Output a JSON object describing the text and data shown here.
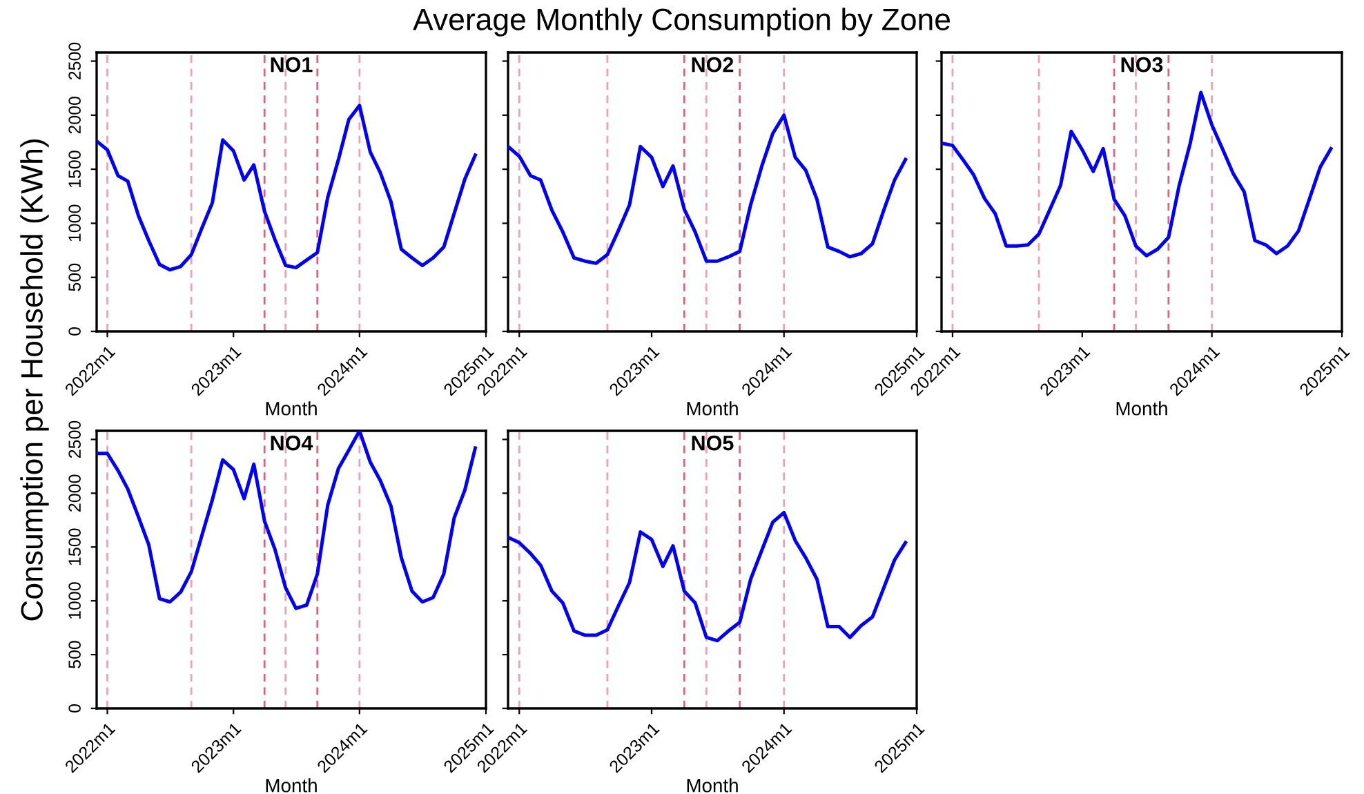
{
  "chart_data": [
    {
      "type": "line",
      "title": "NO1",
      "xlabel": "Month",
      "ylabel": "Consumption per Household (KWh)",
      "annotations": [
        "Average Monthly Consumption by Zone"
      ],
      "xlim": [
        "2021-12",
        "2025-01"
      ],
      "xticks": [
        {
          "value": "2022-01",
          "label": "2022m1"
        },
        {
          "value": "2023-01",
          "label": "2023m1"
        },
        {
          "value": "2024-01",
          "label": "2024m1"
        },
        {
          "value": "2025-01",
          "label": "2025m1"
        }
      ],
      "ylim": [
        0,
        2580
      ],
      "yticks": [
        0,
        500,
        1000,
        1500,
        2000,
        2500
      ],
      "grid": false,
      "legend": false,
      "line_style": "solid",
      "x": [
        "2021-12",
        "2022-01",
        "2022-02",
        "2022-03",
        "2022-04",
        "2022-05",
        "2022-06",
        "2022-07",
        "2022-08",
        "2022-09",
        "2022-10",
        "2022-11",
        "2022-12",
        "2023-01",
        "2023-02",
        "2023-03",
        "2023-04",
        "2023-05",
        "2023-06",
        "2023-07",
        "2023-08",
        "2023-09",
        "2023-10",
        "2023-11",
        "2023-12",
        "2024-01",
        "2024-02",
        "2024-03",
        "2024-04",
        "2024-05",
        "2024-06",
        "2024-07",
        "2024-08",
        "2024-09",
        "2024-10",
        "2024-11",
        "2024-12"
      ],
      "series": [
        {
          "color": "#0000ff",
          "values": [
            1760,
            1680,
            1440,
            1390,
            1070,
            840,
            620,
            570,
            600,
            710,
            950,
            1190,
            1770,
            1670,
            1400,
            1540,
            1110,
            850,
            610,
            590,
            660,
            730,
            1240,
            1590,
            1960,
            2090,
            1660,
            1470,
            1200,
            760,
            680,
            610,
            680,
            780,
            1090,
            1410,
            1630
          ]
        }
      ],
      "ref_lines": [
        {
          "axis": "x",
          "value": "2022-01",
          "color": "#f0a0b4",
          "line_style": "dashed"
        },
        {
          "axis": "x",
          "value": "2022-09",
          "color": "#f0a0b4",
          "line_style": "dashed"
        },
        {
          "axis": "x",
          "value": "2023-04",
          "color": "#e0607e",
          "line_style": "dashed"
        },
        {
          "axis": "x",
          "value": "2023-06",
          "color": "#f0a0b4",
          "line_style": "dashed"
        },
        {
          "axis": "x",
          "value": "2023-09",
          "color": "#e0607e",
          "line_style": "dashed"
        },
        {
          "axis": "x",
          "value": "2024-01",
          "color": "#f0a0b4",
          "line_style": "dashed"
        }
      ]
    },
    {
      "type": "line",
      "title": "NO2",
      "xlabel": "Month",
      "tick_labels": "x",
      "xlim": [
        "2021-12",
        "2025-01"
      ],
      "xticks": [
        {
          "value": "2022-01",
          "label": "2022m1"
        },
        {
          "value": "2023-01",
          "label": "2023m1"
        },
        {
          "value": "2024-01",
          "label": "2024m1"
        },
        {
          "value": "2025-01",
          "label": "2025m1"
        }
      ],
      "ylim": [
        0,
        2580
      ],
      "yticks": [
        0,
        500,
        1000,
        1500,
        2000,
        2500
      ],
      "grid": false,
      "legend": false,
      "line_style": "solid",
      "x": [
        "2021-12",
        "2022-01",
        "2022-02",
        "2022-03",
        "2022-04",
        "2022-05",
        "2022-06",
        "2022-07",
        "2022-08",
        "2022-09",
        "2022-10",
        "2022-11",
        "2022-12",
        "2023-01",
        "2023-02",
        "2023-03",
        "2023-04",
        "2023-05",
        "2023-06",
        "2023-07",
        "2023-08",
        "2023-09",
        "2023-10",
        "2023-11",
        "2023-12",
        "2024-01",
        "2024-02",
        "2024-03",
        "2024-04",
        "2024-05",
        "2024-06",
        "2024-07",
        "2024-08",
        "2024-09",
        "2024-10",
        "2024-11",
        "2024-12"
      ],
      "series": [
        {
          "color": "#0000ff",
          "values": [
            1710,
            1620,
            1440,
            1400,
            1120,
            920,
            680,
            650,
            630,
            710,
            930,
            1170,
            1710,
            1610,
            1340,
            1530,
            1130,
            920,
            650,
            650,
            690,
            740,
            1170,
            1530,
            1830,
            2000,
            1610,
            1490,
            1220,
            780,
            740,
            690,
            720,
            810,
            1110,
            1400,
            1590
          ]
        }
      ],
      "ref_lines": [
        {
          "axis": "x",
          "value": "2022-01",
          "color": "#f0a0b4",
          "line_style": "dashed"
        },
        {
          "axis": "x",
          "value": "2022-09",
          "color": "#f0a0b4",
          "line_style": "dashed"
        },
        {
          "axis": "x",
          "value": "2023-04",
          "color": "#e0607e",
          "line_style": "dashed"
        },
        {
          "axis": "x",
          "value": "2023-06",
          "color": "#f0a0b4",
          "line_style": "dashed"
        },
        {
          "axis": "x",
          "value": "2023-09",
          "color": "#e0607e",
          "line_style": "dashed"
        },
        {
          "axis": "x",
          "value": "2024-01",
          "color": "#f0a0b4",
          "line_style": "dashed"
        }
      ]
    },
    {
      "type": "line",
      "title": "NO3",
      "xlabel": "Month",
      "tick_labels": "x",
      "xlim": [
        "2021-12",
        "2025-01"
      ],
      "xticks": [
        {
          "value": "2022-01",
          "label": "2022m1"
        },
        {
          "value": "2023-01",
          "label": "2023m1"
        },
        {
          "value": "2024-01",
          "label": "2024m1"
        },
        {
          "value": "2025-01",
          "label": "2025m1"
        }
      ],
      "ylim": [
        0,
        2580
      ],
      "yticks": [
        0,
        500,
        1000,
        1500,
        2000,
        2500
      ],
      "grid": false,
      "legend": false,
      "line_style": "solid",
      "x": [
        "2021-12",
        "2022-01",
        "2022-02",
        "2022-03",
        "2022-04",
        "2022-05",
        "2022-06",
        "2022-07",
        "2022-08",
        "2022-09",
        "2022-10",
        "2022-11",
        "2022-12",
        "2023-01",
        "2023-02",
        "2023-03",
        "2023-04",
        "2023-05",
        "2023-06",
        "2023-07",
        "2023-08",
        "2023-09",
        "2023-10",
        "2023-11",
        "2023-12",
        "2024-01",
        "2024-02",
        "2024-03",
        "2024-04",
        "2024-05",
        "2024-06",
        "2024-07",
        "2024-08",
        "2024-09",
        "2024-10",
        "2024-11",
        "2024-12"
      ],
      "series": [
        {
          "color": "#0000ff",
          "values": [
            1740,
            1720,
            1580,
            1450,
            1230,
            1090,
            790,
            790,
            800,
            900,
            1120,
            1350,
            1850,
            1680,
            1480,
            1690,
            1220,
            1070,
            790,
            700,
            760,
            870,
            1350,
            1740,
            2210,
            1910,
            1680,
            1460,
            1290,
            840,
            800,
            720,
            790,
            930,
            1220,
            1520,
            1690
          ]
        }
      ],
      "ref_lines": [
        {
          "axis": "x",
          "value": "2022-01",
          "color": "#f0a0b4",
          "line_style": "dashed"
        },
        {
          "axis": "x",
          "value": "2022-09",
          "color": "#f0a0b4",
          "line_style": "dashed"
        },
        {
          "axis": "x",
          "value": "2023-04",
          "color": "#e0607e",
          "line_style": "dashed"
        },
        {
          "axis": "x",
          "value": "2023-06",
          "color": "#f0a0b4",
          "line_style": "dashed"
        },
        {
          "axis": "x",
          "value": "2023-09",
          "color": "#e0607e",
          "line_style": "dashed"
        },
        {
          "axis": "x",
          "value": "2024-01",
          "color": "#f0a0b4",
          "line_style": "dashed"
        }
      ]
    },
    {
      "type": "line",
      "title": "NO4",
      "xlabel": "Month",
      "xlim": [
        "2021-12",
        "2025-01"
      ],
      "xticks": [
        {
          "value": "2022-01",
          "label": "2022m1"
        },
        {
          "value": "2023-01",
          "label": "2023m1"
        },
        {
          "value": "2024-01",
          "label": "2024m1"
        },
        {
          "value": "2025-01",
          "label": "2025m1"
        }
      ],
      "ylim": [
        0,
        2580
      ],
      "yticks": [
        0,
        500,
        1000,
        1500,
        2000,
        2500
      ],
      "grid": false,
      "legend": false,
      "line_style": "solid",
      "x": [
        "2021-12",
        "2022-01",
        "2022-02",
        "2022-03",
        "2022-04",
        "2022-05",
        "2022-06",
        "2022-07",
        "2022-08",
        "2022-09",
        "2022-10",
        "2022-11",
        "2022-12",
        "2023-01",
        "2023-02",
        "2023-03",
        "2023-04",
        "2023-05",
        "2023-06",
        "2023-07",
        "2023-08",
        "2023-09",
        "2023-10",
        "2023-11",
        "2023-12",
        "2024-01",
        "2024-02",
        "2024-03",
        "2024-04",
        "2024-05",
        "2024-06",
        "2024-07",
        "2024-08",
        "2024-09",
        "2024-10",
        "2024-11",
        "2024-12"
      ],
      "series": [
        {
          "color": "#0000ff",
          "values": [
            2370,
            2370,
            2210,
            2040,
            1780,
            1520,
            1020,
            990,
            1080,
            1270,
            1600,
            1940,
            2310,
            2220,
            1950,
            2270,
            1740,
            1480,
            1120,
            930,
            960,
            1250,
            1890,
            2230,
            2400,
            2580,
            2290,
            2120,
            1880,
            1400,
            1090,
            990,
            1030,
            1250,
            1770,
            2030,
            2420
          ]
        }
      ],
      "ref_lines": [
        {
          "axis": "x",
          "value": "2022-01",
          "color": "#f0a0b4",
          "line_style": "dashed"
        },
        {
          "axis": "x",
          "value": "2022-09",
          "color": "#f0a0b4",
          "line_style": "dashed"
        },
        {
          "axis": "x",
          "value": "2023-04",
          "color": "#e0607e",
          "line_style": "dashed"
        },
        {
          "axis": "x",
          "value": "2023-06",
          "color": "#f0a0b4",
          "line_style": "dashed"
        },
        {
          "axis": "x",
          "value": "2023-09",
          "color": "#e0607e",
          "line_style": "dashed"
        },
        {
          "axis": "x",
          "value": "2024-01",
          "color": "#f0a0b4",
          "line_style": "dashed"
        }
      ]
    },
    {
      "type": "line",
      "title": "NO5",
      "xlabel": "Month",
      "tick_labels": "x",
      "xlim": [
        "2021-12",
        "2025-01"
      ],
      "xticks": [
        {
          "value": "2022-01",
          "label": "2022m1"
        },
        {
          "value": "2023-01",
          "label": "2023m1"
        },
        {
          "value": "2024-01",
          "label": "2024m1"
        },
        {
          "value": "2025-01",
          "label": "2025m1"
        }
      ],
      "ylim": [
        0,
        2580
      ],
      "yticks": [
        0,
        500,
        1000,
        1500,
        2000,
        2500
      ],
      "grid": false,
      "legend": false,
      "line_style": "solid",
      "x": [
        "2021-12",
        "2022-01",
        "2022-02",
        "2022-03",
        "2022-04",
        "2022-05",
        "2022-06",
        "2022-07",
        "2022-08",
        "2022-09",
        "2022-10",
        "2022-11",
        "2022-12",
        "2023-01",
        "2023-02",
        "2023-03",
        "2023-04",
        "2023-05",
        "2023-06",
        "2023-07",
        "2023-08",
        "2023-09",
        "2023-10",
        "2023-11",
        "2023-12",
        "2024-01",
        "2024-02",
        "2024-03",
        "2024-04",
        "2024-05",
        "2024-06",
        "2024-07",
        "2024-08",
        "2024-09",
        "2024-10",
        "2024-11",
        "2024-12"
      ],
      "series": [
        {
          "color": "#0000ff",
          "values": [
            1590,
            1540,
            1440,
            1330,
            1090,
            980,
            720,
            680,
            680,
            730,
            950,
            1170,
            1640,
            1570,
            1320,
            1510,
            1090,
            980,
            660,
            630,
            720,
            800,
            1200,
            1470,
            1730,
            1820,
            1560,
            1400,
            1200,
            760,
            760,
            660,
            770,
            850,
            1110,
            1380,
            1540
          ]
        }
      ],
      "ref_lines": [
        {
          "axis": "x",
          "value": "2022-01",
          "color": "#f0a0b4",
          "line_style": "dashed"
        },
        {
          "axis": "x",
          "value": "2022-09",
          "color": "#f0a0b4",
          "line_style": "dashed"
        },
        {
          "axis": "x",
          "value": "2023-04",
          "color": "#e0607e",
          "line_style": "dashed"
        },
        {
          "axis": "x",
          "value": "2023-06",
          "color": "#f0a0b4",
          "line_style": "dashed"
        },
        {
          "axis": "x",
          "value": "2023-09",
          "color": "#e0607e",
          "line_style": "dashed"
        },
        {
          "axis": "x",
          "value": "2024-01",
          "color": "#f0a0b4",
          "line_style": "dashed"
        }
      ]
    }
  ]
}
